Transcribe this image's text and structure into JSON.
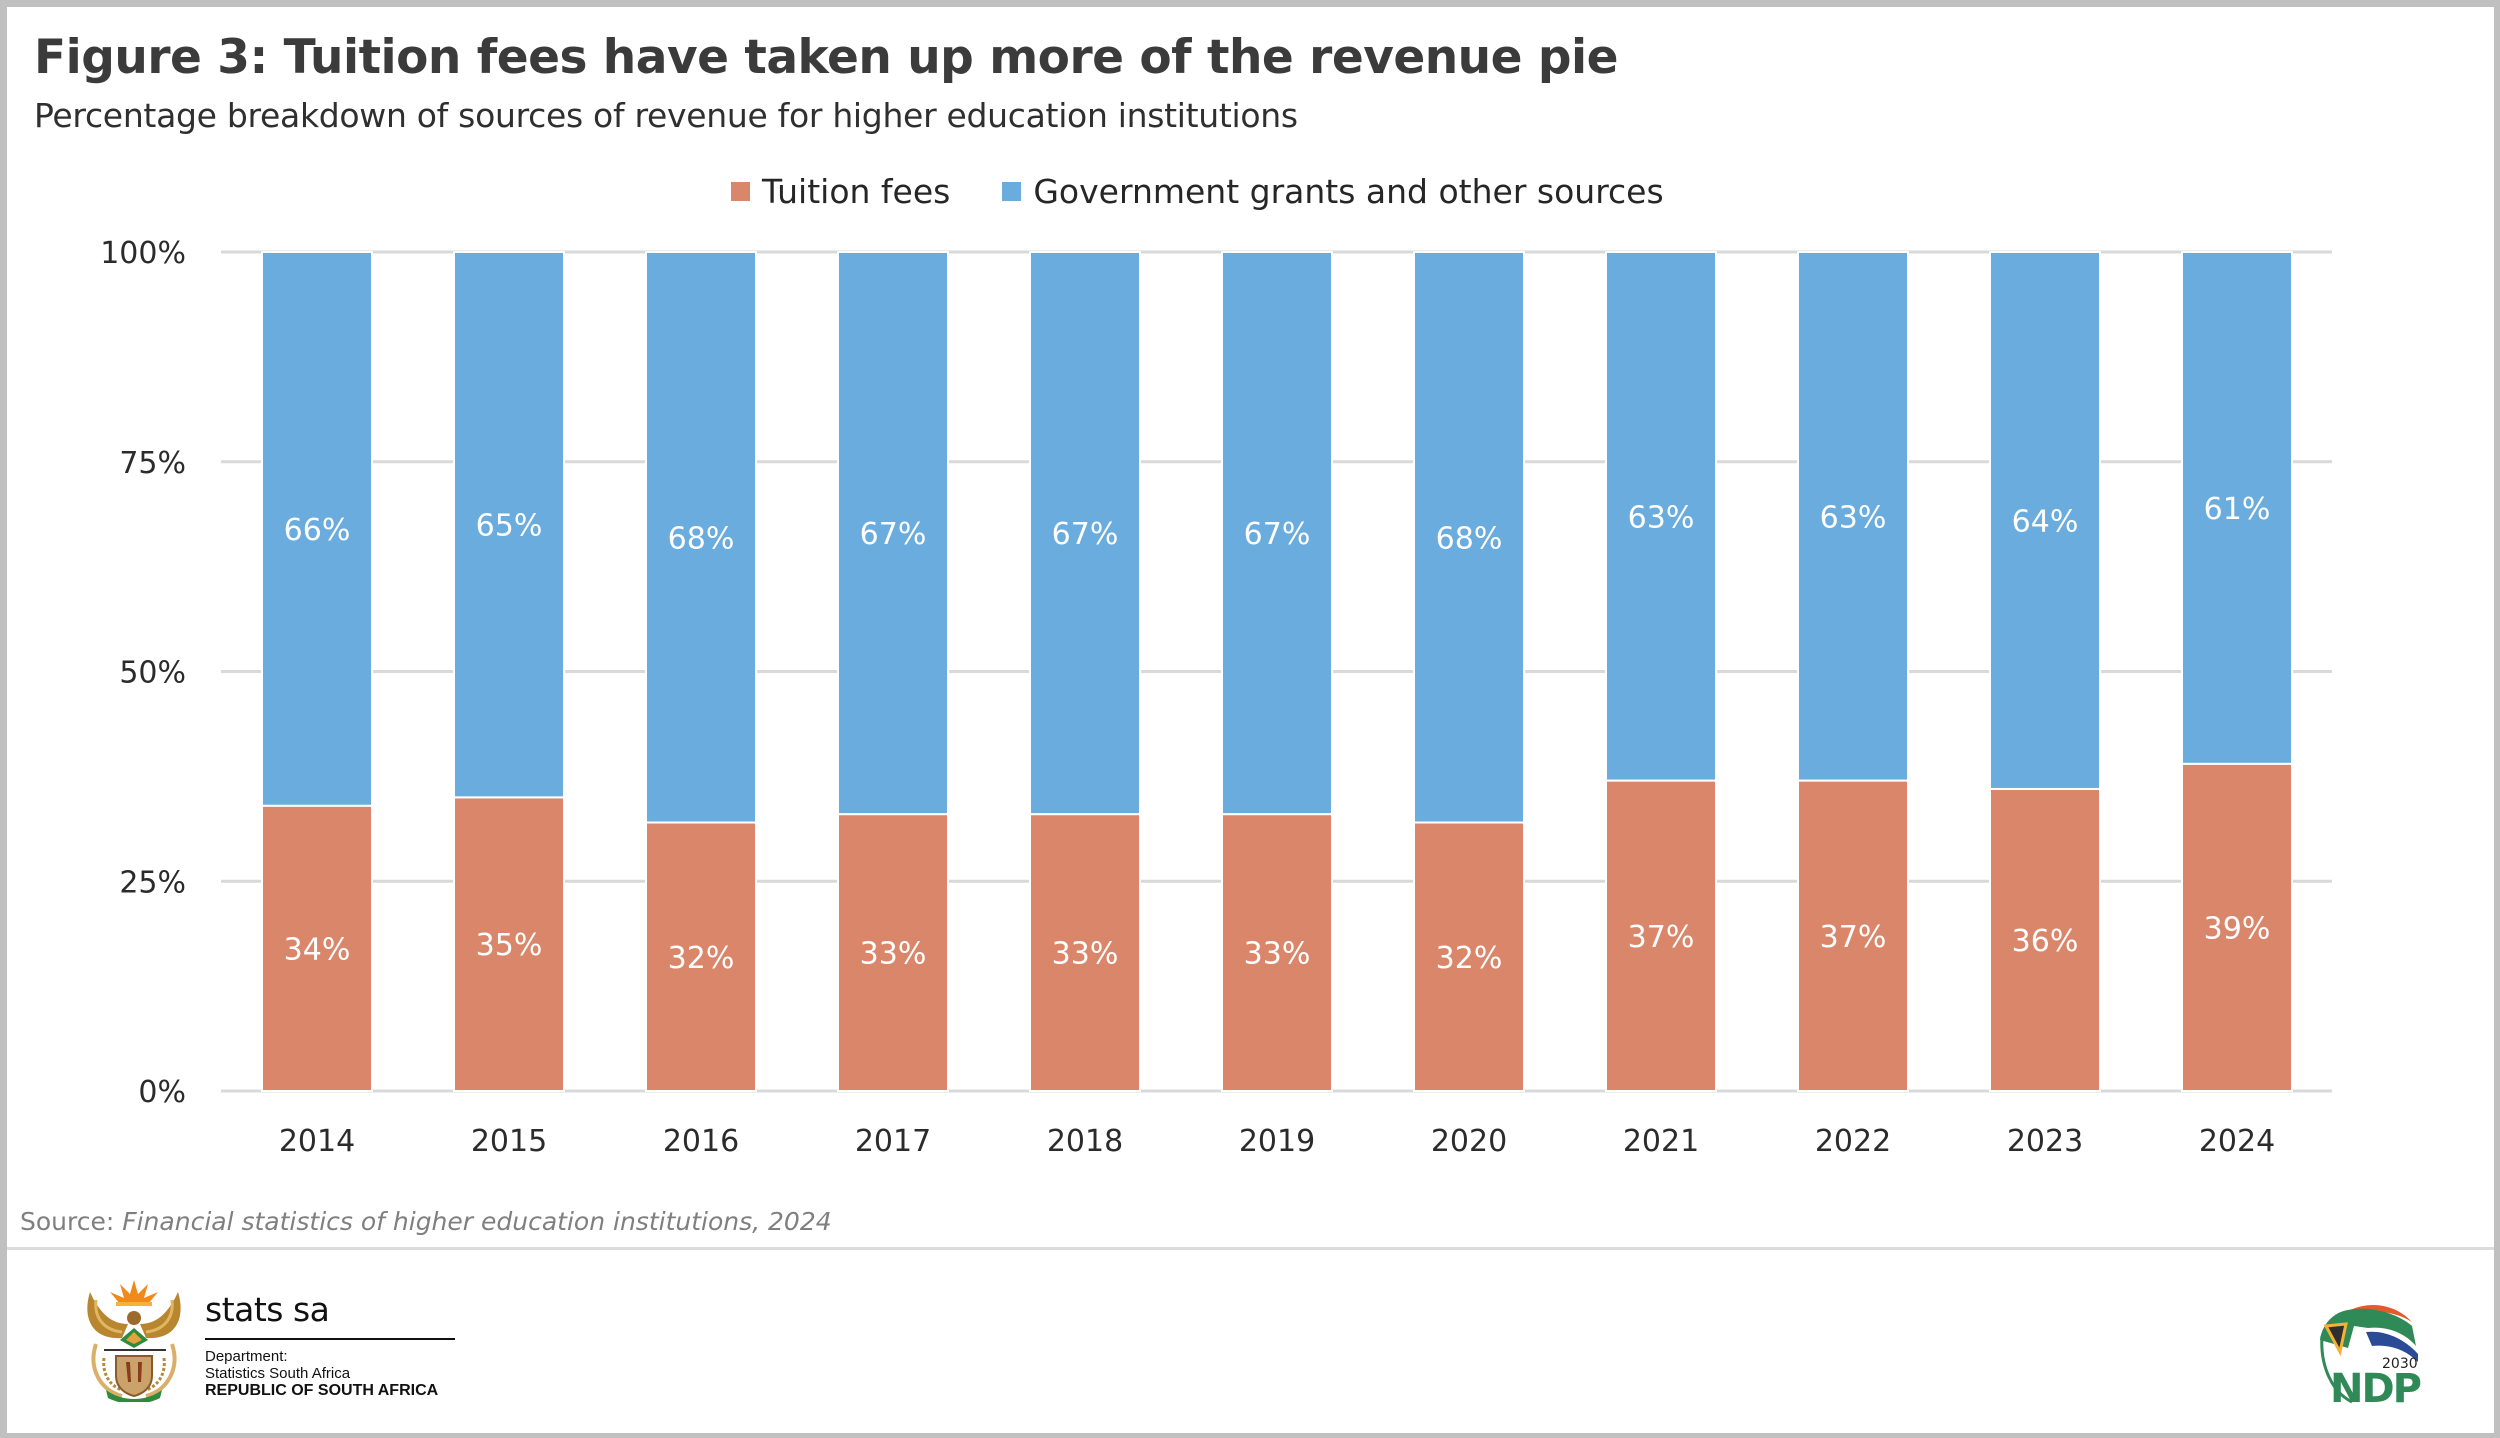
{
  "header": {
    "title": "Figure 3: Tuition fees have taken up more of the revenue pie",
    "subtitle": "Percentage breakdown of sources of revenue for higher education institutions"
  },
  "legend": [
    {
      "label": "Tuition fees",
      "color": "#d9866a"
    },
    {
      "label": "Government grants and other sources",
      "color": "#6aacdd"
    }
  ],
  "chart_data": {
    "type": "bar",
    "stacked": true,
    "percent_stacked": true,
    "title": "Figure 3: Tuition fees have taken up more of the revenue pie",
    "subtitle": "Percentage breakdown of sources of revenue for higher education institutions",
    "xlabel": "",
    "ylabel": "",
    "categories": [
      "2014",
      "2015",
      "2016",
      "2017",
      "2018",
      "2019",
      "2020",
      "2021",
      "2022",
      "2023",
      "2024"
    ],
    "series": [
      {
        "name": "Tuition fees",
        "color": "#d9866a",
        "values": [
          34,
          35,
          32,
          33,
          33,
          33,
          32,
          37,
          37,
          36,
          39
        ],
        "labels": [
          "34%",
          "35%",
          "32%",
          "33%",
          "33%",
          "33%",
          "32%",
          "37%",
          "37%",
          "36%",
          "39%"
        ]
      },
      {
        "name": "Government grants and other sources",
        "color": "#6aacdd",
        "values": [
          66,
          65,
          68,
          67,
          67,
          67,
          68,
          63,
          63,
          64,
          61
        ],
        "labels": [
          "66%",
          "65%",
          "68%",
          "67%",
          "67%",
          "67%",
          "68%",
          "63%",
          "63%",
          "64%",
          "61%"
        ]
      }
    ],
    "ylim": [
      0,
      100
    ],
    "yticks": [
      0,
      25,
      50,
      75,
      100
    ],
    "ytick_labels": [
      "0%",
      "25%",
      "50%",
      "75%",
      "100%"
    ],
    "grid": true,
    "legend_position": "top-center",
    "data_labels": true
  },
  "footer": {
    "source_prefix": "Source: ",
    "source_title": "Financial statistics of higher education institutions, 2024",
    "org_name": "stats sa",
    "dept_line1": "Department:",
    "dept_line2": "Statistics South Africa",
    "dept_line3": "REPUBLIC OF SOUTH AFRICA",
    "ndp_year": "2030",
    "ndp_label": "NDP"
  }
}
